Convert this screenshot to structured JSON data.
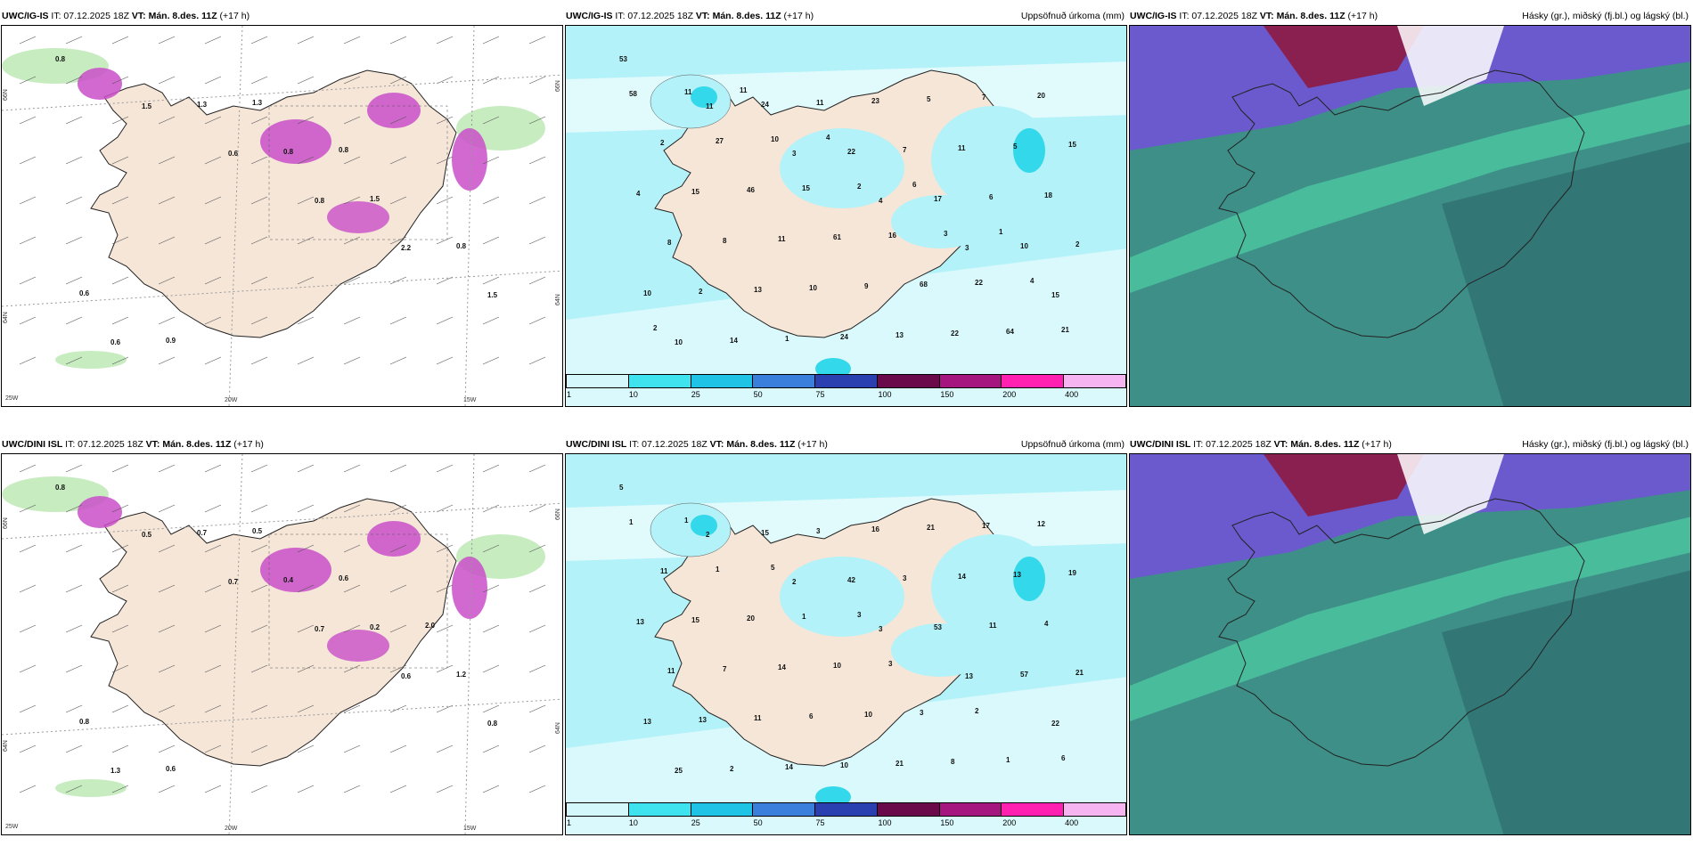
{
  "colors": {
    "land": "#f5e6d8",
    "sea": "#ffffff",
    "precip_light": "#b3f2f8",
    "precip_mid": "#33d8ea",
    "magenta": "#c94fc9",
    "green_light": "#c7ecc0",
    "cloud_teal": "#3d8f88",
    "cloud_dark": "#2f6b6f",
    "cloud_purple": "#6a5acd",
    "cloud_maroon": "#8a2050"
  },
  "colorbar": {
    "colors": [
      "#d3f7fb",
      "#3fe3ef",
      "#1fc3e6",
      "#3a7fdc",
      "#2a3fb0",
      "#6a0a4a",
      "#a5167e",
      "#ff1fb0",
      "#f6b5f0"
    ],
    "ticks": [
      "1",
      "10",
      "25",
      "50",
      "75",
      "100",
      "150",
      "200",
      "400"
    ]
  },
  "panels": [
    {
      "id": "top-left",
      "model": "UWC/IG-IS",
      "it_text": "IT: 07.12.2025 18Z",
      "vt_text": "VT: Mán. 8.des. 11Z",
      "lead": "(+17 h)",
      "title_right": "",
      "lat_labels": [
        "66N",
        "64N",
        "66N",
        "64N"
      ],
      "lon_labels": [
        "25W",
        "20W",
        "15W"
      ],
      "values": [
        "0.8",
        "1.5",
        "0.6",
        "0.8",
        "2.2",
        "1.5",
        "0.6",
        "1.3",
        "0.8",
        "1.5",
        "0.8",
        "0.6",
        "0.9",
        "1.3",
        "0.8"
      ]
    },
    {
      "id": "top-middle",
      "model": "UWC/IG-IS",
      "it_text": "IT: 07.12.2025 18Z",
      "vt_text": "VT: Mán. 8.des. 11Z",
      "lead": "(+17 h)",
      "title_right": "Uppsöfnuð úrkoma (mm)",
      "values": [
        "53",
        "11",
        "3",
        "4",
        "3",
        "15",
        "10",
        "24",
        "22",
        "17",
        "10",
        "10",
        "14",
        "11",
        "7",
        "6",
        "2",
        "2",
        "1",
        "23",
        "11",
        "18",
        "8",
        "13",
        "24",
        "5",
        "5",
        "4",
        "8",
        "10",
        "13",
        "7",
        "15",
        "15",
        "11",
        "9",
        "22",
        "20",
        "2",
        "46",
        "61",
        "68",
        "64",
        "58",
        "27",
        "15",
        "16",
        "22",
        "21",
        "11",
        "10",
        "2",
        "3",
        "4",
        "2",
        "11",
        "4",
        "6",
        "1"
      ]
    },
    {
      "id": "top-right",
      "model": "UWC/IG-IS",
      "it_text": "IT: 07.12.2025 18Z",
      "vt_text": "VT: Mán. 8.des. 11Z",
      "lead": "(+17 h)",
      "title_right": "Hásky (gr.), miðský (fj.bl.) og lágský (bl.)"
    },
    {
      "id": "bottom-left",
      "model": "UWC/DINI ISL",
      "it_text": "IT: 07.12.2025 18Z",
      "vt_text": "VT: Mán. 8.des. 11Z",
      "lead": "(+17 h)",
      "title_right": "",
      "lat_labels": [
        "66N",
        "64N",
        "66N",
        "64N"
      ],
      "lon_labels": [
        "25W",
        "20W",
        "15W"
      ],
      "values": [
        "0.8",
        "0.5",
        "0.7",
        "0.7",
        "0.6",
        "0.8",
        "1.3",
        "0.7",
        "0.4",
        "0.2",
        "1.2",
        "0.8",
        "0.6",
        "0.5",
        "0.6",
        "2.0"
      ]
    },
    {
      "id": "bottom-middle",
      "model": "UWC/DINI ISL",
      "it_text": "IT: 07.12.2025 18Z",
      "vt_text": "VT: Mán. 8.des. 11Z",
      "lead": "(+17 h)",
      "title_right": "Uppsöfnuð úrkoma (mm)",
      "values": [
        "5",
        "2",
        "2",
        "3",
        "13",
        "22",
        "25",
        "15",
        "42",
        "53",
        "57",
        "13",
        "2",
        "3",
        "3",
        "11",
        "21",
        "13",
        "14",
        "16",
        "14",
        "4",
        "11",
        "11",
        "10",
        "21",
        "13",
        "13",
        "7",
        "6",
        "21",
        "17",
        "19",
        "15",
        "14",
        "10",
        "8",
        "12",
        "11",
        "20",
        "10",
        "3",
        "1",
        "1",
        "1",
        "1",
        "3",
        "2",
        "6",
        "1",
        "5",
        "3"
      ]
    },
    {
      "id": "bottom-right",
      "model": "UWC/DINI ISL",
      "it_text": "IT: 07.12.2025 18Z",
      "vt_text": "VT: Mán. 8.des. 11Z",
      "lead": "(+17 h)",
      "title_right": "Hásky (gr.), miðský (fj.bl.) og lágský (bl.)"
    }
  ]
}
